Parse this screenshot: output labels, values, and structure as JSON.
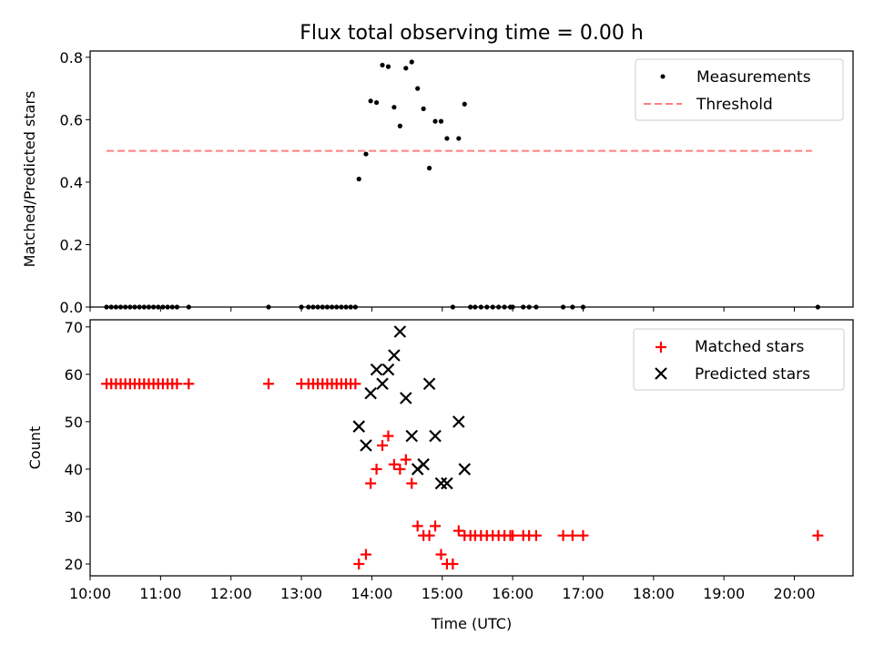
{
  "chart_data": [
    {
      "type": "scatter",
      "title": "Flux total observing time = 0.00 h",
      "xlabel": "",
      "ylabel": "Matched/Predicted stars",
      "xlim": [
        "10:00",
        "20:50"
      ],
      "ylim": [
        0.0,
        0.82
      ],
      "yticks": [
        "0.0",
        "0.2",
        "0.4",
        "0.6",
        "0.8"
      ],
      "yticks_values": [
        0.0,
        0.2,
        0.4,
        0.6,
        0.8
      ],
      "legend_position": "top-right",
      "threshold": {
        "name": "Threshold",
        "value": 0.5,
        "x_start": "10:14",
        "x_end": "20:15",
        "color": "#ff7f7f",
        "style": "dashed"
      },
      "series": [
        {
          "name": "Measurements",
          "color": "#000000",
          "marker": "dot",
          "points": [
            [
              "10:14",
              0.0
            ],
            [
              "10:18",
              0.0
            ],
            [
              "10:22",
              0.0
            ],
            [
              "10:26",
              0.0
            ],
            [
              "10:30",
              0.0
            ],
            [
              "10:34",
              0.0
            ],
            [
              "10:38",
              0.0
            ],
            [
              "10:42",
              0.0
            ],
            [
              "10:46",
              0.0
            ],
            [
              "10:50",
              0.0
            ],
            [
              "10:54",
              0.0
            ],
            [
              "10:58",
              0.0
            ],
            [
              "11:02",
              0.0
            ],
            [
              "11:06",
              0.0
            ],
            [
              "11:10",
              0.0
            ],
            [
              "11:14",
              0.0
            ],
            [
              "11:24",
              0.0
            ],
            [
              "12:32",
              0.0
            ],
            [
              "13:00",
              0.0
            ],
            [
              "13:06",
              0.0
            ],
            [
              "13:10",
              0.0
            ],
            [
              "13:14",
              0.0
            ],
            [
              "13:18",
              0.0
            ],
            [
              "13:22",
              0.0
            ],
            [
              "13:26",
              0.0
            ],
            [
              "13:30",
              0.0
            ],
            [
              "13:34",
              0.0
            ],
            [
              "13:38",
              0.0
            ],
            [
              "13:42",
              0.0
            ],
            [
              "13:46",
              0.0
            ],
            [
              "13:49",
              0.41
            ],
            [
              "13:55",
              0.49
            ],
            [
              "13:59",
              0.66
            ],
            [
              "14:04",
              0.655
            ],
            [
              "14:09",
              0.775
            ],
            [
              "14:14",
              0.77
            ],
            [
              "14:19",
              0.64
            ],
            [
              "14:24",
              0.58
            ],
            [
              "14:29",
              0.765
            ],
            [
              "14:34",
              0.785
            ],
            [
              "14:39",
              0.7
            ],
            [
              "14:44",
              0.635
            ],
            [
              "14:49",
              0.445
            ],
            [
              "14:54",
              0.595
            ],
            [
              "14:59",
              0.595
            ],
            [
              "15:04",
              0.54
            ],
            [
              "15:09",
              0.0
            ],
            [
              "15:14",
              0.54
            ],
            [
              "15:19",
              0.65
            ],
            [
              "15:24",
              0.0
            ],
            [
              "15:28",
              0.0
            ],
            [
              "15:33",
              0.0
            ],
            [
              "15:38",
              0.0
            ],
            [
              "15:43",
              0.0
            ],
            [
              "15:48",
              0.0
            ],
            [
              "15:53",
              0.0
            ],
            [
              "15:58",
              0.0
            ],
            [
              "16:00",
              0.0
            ],
            [
              "16:09",
              0.0
            ],
            [
              "16:14",
              0.0
            ],
            [
              "16:20",
              0.0
            ],
            [
              "16:43",
              0.0
            ],
            [
              "16:51",
              0.0
            ],
            [
              "17:00",
              0.0
            ],
            [
              "20:20",
              0.0
            ]
          ]
        }
      ]
    },
    {
      "type": "scatter",
      "title": "",
      "xlabel": "Time (UTC)",
      "ylabel": "Count",
      "xlim": [
        "10:00",
        "20:50"
      ],
      "ylim": [
        17.5,
        71.5
      ],
      "yticks": [
        "20",
        "30",
        "40",
        "50",
        "60",
        "70"
      ],
      "yticks_values": [
        20,
        30,
        40,
        50,
        60,
        70
      ],
      "xticks": [
        "10:00",
        "11:00",
        "12:00",
        "13:00",
        "14:00",
        "15:00",
        "16:00",
        "17:00",
        "18:00",
        "19:00",
        "20:00"
      ],
      "legend_position": "top-right",
      "series": [
        {
          "name": "Matched stars",
          "color": "#ff0000",
          "marker": "plus",
          "points": [
            [
              "10:14",
              58
            ],
            [
              "10:18",
              58
            ],
            [
              "10:22",
              58
            ],
            [
              "10:26",
              58
            ],
            [
              "10:30",
              58
            ],
            [
              "10:34",
              58
            ],
            [
              "10:38",
              58
            ],
            [
              "10:42",
              58
            ],
            [
              "10:46",
              58
            ],
            [
              "10:50",
              58
            ],
            [
              "10:54",
              58
            ],
            [
              "10:58",
              58
            ],
            [
              "11:02",
              58
            ],
            [
              "11:06",
              58
            ],
            [
              "11:10",
              58
            ],
            [
              "11:14",
              58
            ],
            [
              "11:24",
              58
            ],
            [
              "12:32",
              58
            ],
            [
              "13:00",
              58
            ],
            [
              "13:06",
              58
            ],
            [
              "13:10",
              58
            ],
            [
              "13:14",
              58
            ],
            [
              "13:18",
              58
            ],
            [
              "13:22",
              58
            ],
            [
              "13:26",
              58
            ],
            [
              "13:30",
              58
            ],
            [
              "13:34",
              58
            ],
            [
              "13:38",
              58
            ],
            [
              "13:42",
              58
            ],
            [
              "13:46",
              58
            ],
            [
              "13:49",
              20
            ],
            [
              "13:55",
              22
            ],
            [
              "13:59",
              37
            ],
            [
              "14:04",
              40
            ],
            [
              "14:09",
              45
            ],
            [
              "14:14",
              47
            ],
            [
              "14:19",
              41
            ],
            [
              "14:24",
              40
            ],
            [
              "14:29",
              42
            ],
            [
              "14:34",
              37
            ],
            [
              "14:39",
              28
            ],
            [
              "14:44",
              26
            ],
            [
              "14:49",
              26
            ],
            [
              "14:54",
              28
            ],
            [
              "14:59",
              22
            ],
            [
              "15:04",
              20
            ],
            [
              "15:09",
              20
            ],
            [
              "15:14",
              27
            ],
            [
              "15:19",
              26
            ],
            [
              "15:24",
              26
            ],
            [
              "15:28",
              26
            ],
            [
              "15:33",
              26
            ],
            [
              "15:38",
              26
            ],
            [
              "15:43",
              26
            ],
            [
              "15:48",
              26
            ],
            [
              "15:53",
              26
            ],
            [
              "15:58",
              26
            ],
            [
              "16:00",
              26
            ],
            [
              "16:09",
              26
            ],
            [
              "16:14",
              26
            ],
            [
              "16:20",
              26
            ],
            [
              "16:43",
              26
            ],
            [
              "16:51",
              26
            ],
            [
              "17:00",
              26
            ],
            [
              "20:20",
              26
            ]
          ]
        },
        {
          "name": "Predicted stars",
          "color": "#000000",
          "marker": "x",
          "points": [
            [
              "13:49",
              49
            ],
            [
              "13:55",
              45
            ],
            [
              "13:59",
              56
            ],
            [
              "14:04",
              61
            ],
            [
              "14:09",
              58
            ],
            [
              "14:14",
              61
            ],
            [
              "14:19",
              64
            ],
            [
              "14:24",
              69
            ],
            [
              "14:29",
              55
            ],
            [
              "14:34",
              47
            ],
            [
              "14:39",
              40
            ],
            [
              "14:44",
              41
            ],
            [
              "14:49",
              58
            ],
            [
              "14:54",
              47
            ],
            [
              "14:59",
              37
            ],
            [
              "15:04",
              37
            ],
            [
              "15:14",
              50
            ],
            [
              "15:19",
              40
            ]
          ]
        }
      ]
    }
  ]
}
